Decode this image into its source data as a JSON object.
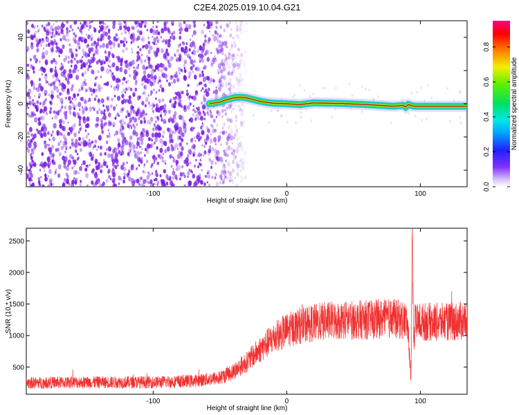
{
  "title": "C2E4.2025.019.10.04.G21",
  "colors": {
    "snr_line": "#f03030",
    "spectral_points": "#7a1fe0",
    "ridge_core": "#e02020",
    "ridge_inner": "#f5e020",
    "ridge_mid": "#30e040",
    "ridge_outer": "#18c8e0"
  },
  "chart_data": [
    {
      "type": "heatmap",
      "title": "C2E4.2025.019.10.04.G21",
      "xlabel": "Height of straight line (km)",
      "ylabel": "Frequency (Hz)",
      "xlim": [
        -195,
        135
      ],
      "ylim": [
        -50,
        50
      ],
      "xticks": [
        -100,
        0,
        100
      ],
      "yticks": [
        -40,
        -20,
        0,
        20,
        40
      ],
      "noise_region_x": [
        -195,
        -35
      ],
      "ridge": {
        "x": [
          -58,
          -50,
          -45,
          -40,
          -35,
          -30,
          -25,
          -20,
          -15,
          -10,
          0,
          10,
          20,
          40,
          60,
          80,
          87,
          89,
          91,
          95,
          100,
          120,
          135
        ],
        "y": [
          0,
          1,
          2.5,
          3.5,
          4,
          3.5,
          2.5,
          1.5,
          0.8,
          0.3,
          0,
          -0.5,
          0.5,
          0.2,
          -0.5,
          -1.5,
          -1,
          -2,
          -0.5,
          -1.5,
          -1.5,
          -1.5,
          -1.5
        ]
      },
      "colorbar": {
        "label": "Normalized spectral amplitude",
        "range": [
          0,
          0.95
        ],
        "ticks": [
          0.0,
          0.2,
          0.4,
          0.6,
          0.8
        ]
      }
    },
    {
      "type": "line",
      "xlabel": "Height of straight line (km)",
      "ylabel": "SNR (10 * v/v)",
      "xlim": [
        -195,
        135
      ],
      "ylim": [
        70,
        2700
      ],
      "xticks": [
        -100,
        0,
        100
      ],
      "yticks": [
        500,
        1000,
        1500,
        2000,
        2500
      ],
      "series": [
        {
          "x": [
            -195,
            -150,
            -100,
            -70,
            -50,
            -40,
            -30,
            -20,
            -10,
            0,
            10,
            20,
            30,
            40,
            60,
            80,
            90,
            92,
            93,
            94,
            95,
            96,
            100,
            120,
            135
          ],
          "y": [
            250,
            260,
            260,
            280,
            330,
            430,
            580,
            780,
            960,
            1080,
            1160,
            1200,
            1230,
            1240,
            1250,
            1270,
            1230,
            700,
            250,
            2600,
            800,
            1200,
            1220,
            1210,
            1240
          ]
        }
      ]
    }
  ]
}
